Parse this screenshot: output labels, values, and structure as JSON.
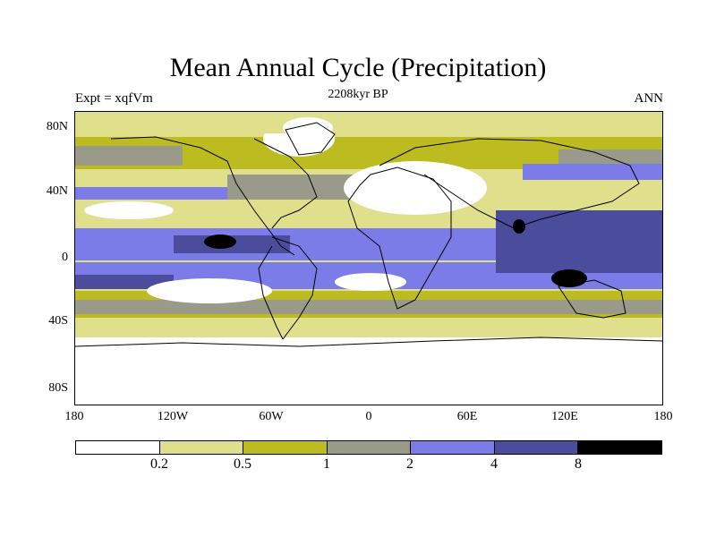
{
  "header": {
    "title": "Mean Annual Cycle (Precipitation)",
    "subtitle": "2208kyr BP",
    "left_label": "Expt = xqfVm",
    "right_label": "ANN"
  },
  "map": {
    "lat_labels": [
      "80N",
      "40N",
      "0",
      "40S",
      "80S"
    ],
    "lon_labels": [
      "180",
      "120W",
      "60W",
      "0",
      "60E",
      "120E",
      "180"
    ]
  },
  "colorbar": {
    "colors": [
      "#ffffff",
      "#e0e08c",
      "#bcbc20",
      "#9a9a8a",
      "#7c7ce8",
      "#4c4c9c",
      "#000000"
    ],
    "labels": [
      "0.2",
      "0.5",
      "1",
      "2",
      "4",
      "8"
    ]
  }
}
